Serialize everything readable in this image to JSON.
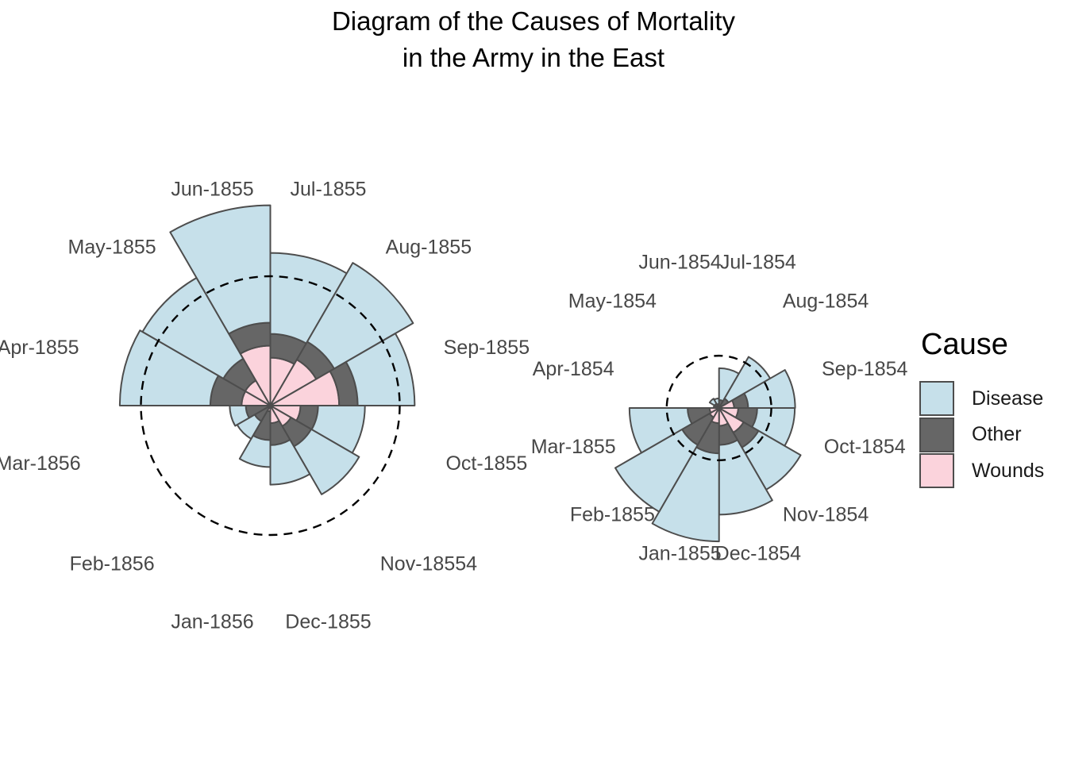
{
  "title": {
    "line1": "Diagram of the Causes of Mortality",
    "line2": "in the Army in the East"
  },
  "legend": {
    "title": "Cause",
    "items": [
      {
        "label": "Disease",
        "color": "#C6E0EA"
      },
      {
        "label": "Other",
        "color": "#666666"
      },
      {
        "label": "Wounds",
        "color": "#FBD3DC"
      }
    ]
  },
  "cause_colors": {
    "Disease": "#C6E0EA",
    "Other": "#666666",
    "Wounds": "#FBD3DC"
  },
  "style": {
    "wedge_stroke": "#4D4D4D",
    "label_color": "#474747",
    "dash_color": "#000000",
    "background": "#FFFFFF"
  },
  "chart_data": [
    {
      "type": "rose-coxcomb-polar-stacked",
      "panel": "left",
      "period": "April 1855 to March 1856",
      "stack_order_from_center": [
        "Wounds",
        "Other",
        "Disease"
      ],
      "radius_rule": "radius = k * cumulative sum of sqrt(deaths), stacked Wounds->Other->Disease",
      "dashed_circle_value": 975,
      "months": [
        {
          "label": "Apr-1855",
          "wounds": 48,
          "other": 57,
          "disease": 477
        },
        {
          "label": "May-1855",
          "wounds": 49,
          "other": 37,
          "disease": 508
        },
        {
          "label": "Jun-1855",
          "wounds": 209,
          "other": 31,
          "disease": 802
        },
        {
          "label": "Jul-1855",
          "wounds": 134,
          "other": 33,
          "disease": 382
        },
        {
          "label": "Aug-1855",
          "wounds": 164,
          "other": 25,
          "disease": 483
        },
        {
          "label": "Sep-1855",
          "wounds": 276,
          "other": 20,
          "disease": 189
        },
        {
          "label": "Oct-1855",
          "wounds": 53,
          "other": 18,
          "disease": 128
        },
        {
          "label": "Nov-18554",
          "wounds": 33,
          "other": 32,
          "disease": 178
        },
        {
          "label": "Dec-1855",
          "wounds": 18,
          "other": 28,
          "disease": 91
        },
        {
          "label": "Jan-1856",
          "wounds": 2,
          "other": 48,
          "disease": 42
        },
        {
          "label": "Feb-1856",
          "wounds": 0,
          "other": 19,
          "disease": 24
        },
        {
          "label": "Mar-1856",
          "wounds": 0,
          "other": 35,
          "disease": 15
        }
      ]
    },
    {
      "type": "rose-coxcomb-polar-stacked",
      "panel": "right",
      "period": "April 1854 to March 1855",
      "stack_order_from_center": [
        "Wounds",
        "Other",
        "Disease"
      ],
      "radius_rule": "radius = k * cumulative sum of sqrt(deaths), stacked Wounds->Other->Disease",
      "dashed_circle_value": 975,
      "months": [
        {
          "label": "Apr-1854",
          "wounds": 0,
          "other": 5,
          "disease": 1
        },
        {
          "label": "May-1854",
          "wounds": 0,
          "other": 9,
          "disease": 12
        },
        {
          "label": "Jun-1854",
          "wounds": 0,
          "other": 6,
          "disease": 11
        },
        {
          "label": "Jul-1854",
          "wounds": 0,
          "other": 23,
          "disease": 359
        },
        {
          "label": "Aug-1854",
          "wounds": 1,
          "other": 30,
          "disease": 828
        },
        {
          "label": "Sep-1854",
          "wounds": 81,
          "other": 70,
          "disease": 788
        },
        {
          "label": "Oct-1854",
          "wounds": 132,
          "other": 128,
          "disease": 503
        },
        {
          "label": "Nov-1854",
          "wounds": 287,
          "other": 106,
          "disease": 844
        },
        {
          "label": "Dec-1854",
          "wounds": 114,
          "other": 131,
          "disease": 1725
        },
        {
          "label": "Jan-1855",
          "wounds": 83,
          "other": 324,
          "disease": 2761
        },
        {
          "label": "Feb-1855",
          "wounds": 42,
          "other": 361,
          "disease": 2120
        },
        {
          "label": "Mar-1855",
          "wounds": 32,
          "other": 172,
          "disease": 1205
        }
      ]
    }
  ]
}
